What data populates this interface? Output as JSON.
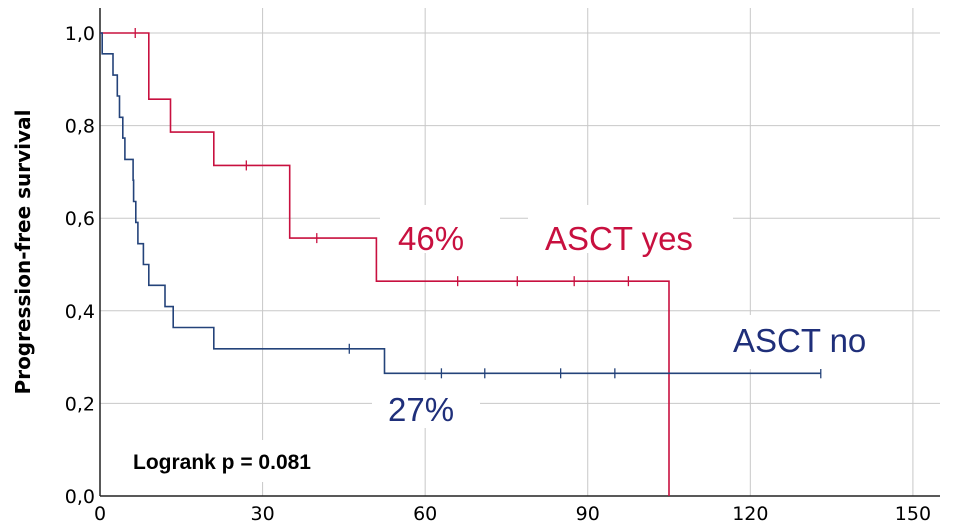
{
  "chart_data": {
    "type": "line",
    "subtype": "kaplan-meier step",
    "title": "",
    "xlabel": "",
    "ylabel": "Progression-free survival",
    "xlim": [
      0,
      155
    ],
    "ylim": [
      0,
      1.0
    ],
    "x_ticks": [
      "0",
      "30",
      "60",
      "90",
      "120",
      "150"
    ],
    "y_ticks": [
      "0,0",
      "0,2",
      "0,4",
      "0,6",
      "0,8",
      "1,0"
    ],
    "grid": true,
    "legend": "none",
    "series": [
      {
        "name": "ASCT yes",
        "color": "#c8103f",
        "steps": [
          [
            0,
            1.0
          ],
          [
            9,
            1.0
          ],
          [
            9,
            0.857
          ],
          [
            13,
            0.857
          ],
          [
            13,
            0.786
          ],
          [
            21,
            0.786
          ],
          [
            21,
            0.714
          ],
          [
            35,
            0.714
          ],
          [
            35,
            0.557
          ],
          [
            51,
            0.557
          ],
          [
            51,
            0.464
          ],
          [
            105,
            0.464
          ],
          [
            105,
            0.0
          ]
        ],
        "censored": [
          [
            6.5,
            1.0
          ],
          [
            27,
            0.714
          ],
          [
            40,
            0.557
          ],
          [
            66,
            0.464
          ],
          [
            77,
            0.464
          ],
          [
            87.5,
            0.464
          ],
          [
            97.5,
            0.464
          ]
        ]
      },
      {
        "name": "ASCT no",
        "color": "#24437a",
        "steps": [
          [
            0,
            1.0
          ],
          [
            0.4,
            1.0
          ],
          [
            0.4,
            0.955
          ],
          [
            2.4,
            0.955
          ],
          [
            2.4,
            0.909
          ],
          [
            3.2,
            0.909
          ],
          [
            3.2,
            0.864
          ],
          [
            3.6,
            0.864
          ],
          [
            3.6,
            0.818
          ],
          [
            4.2,
            0.818
          ],
          [
            4.2,
            0.773
          ],
          [
            4.6,
            0.773
          ],
          [
            4.6,
            0.727
          ],
          [
            6.1,
            0.727
          ],
          [
            6.1,
            0.682
          ],
          [
            6.2,
            0.682
          ],
          [
            6.2,
            0.636
          ],
          [
            6.6,
            0.636
          ],
          [
            6.6,
            0.591
          ],
          [
            7.0,
            0.591
          ],
          [
            7.0,
            0.545
          ],
          [
            8.0,
            0.545
          ],
          [
            8.0,
            0.5
          ],
          [
            9.0,
            0.5
          ],
          [
            9.0,
            0.455
          ],
          [
            12.0,
            0.455
          ],
          [
            12.0,
            0.409
          ],
          [
            13.5,
            0.409
          ],
          [
            13.5,
            0.364
          ],
          [
            21,
            0.364
          ],
          [
            21,
            0.318
          ],
          [
            52.5,
            0.318
          ],
          [
            52.5,
            0.265
          ],
          [
            133,
            0.265
          ]
        ],
        "censored": [
          [
            46,
            0.318
          ],
          [
            63,
            0.265
          ],
          [
            71,
            0.265
          ],
          [
            85,
            0.265
          ],
          [
            95,
            0.265
          ],
          [
            133,
            0.265
          ]
        ]
      }
    ],
    "annotations": [
      {
        "text": "46%",
        "color": "#c8103f"
      },
      {
        "text": "ASCT yes",
        "color": "#c8103f"
      },
      {
        "text": "ASCT no",
        "color": "#1f2f7a"
      },
      {
        "text": "27%",
        "color": "#1f2f7a"
      },
      {
        "text": "Logrank p = 0.081",
        "color": "#000000"
      }
    ]
  }
}
